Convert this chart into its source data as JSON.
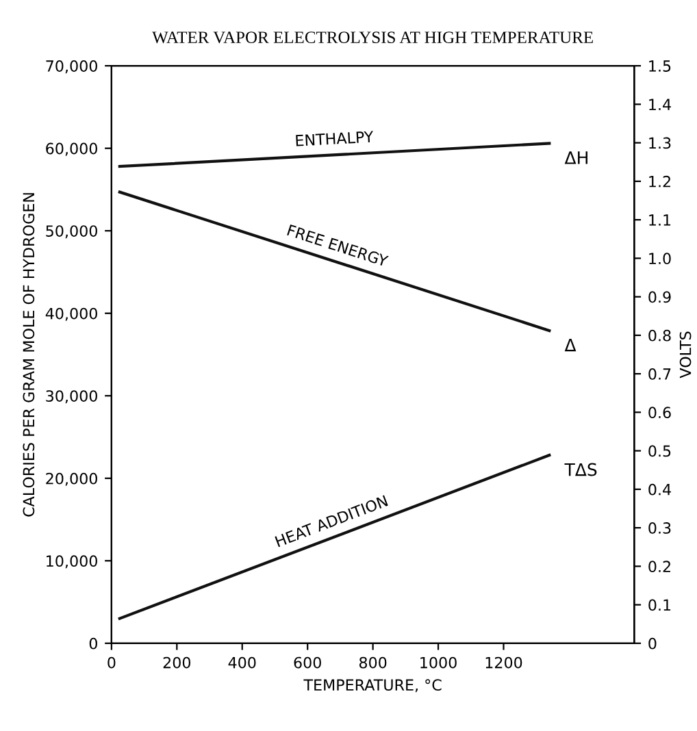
{
  "chart_data": {
    "type": "line",
    "title": "WATER VAPOR ELECTROLYSIS AT HIGH TEMPERATURE",
    "xlabel": "TEMPERATURE, °C",
    "ylabel": "CALORIES PER GRAM MOLE OF HYDROGEN",
    "y2label": "VOLTS",
    "x": [
      25,
      1340
    ],
    "series": [
      {
        "name": "ENTHALPY",
        "color": "#111111",
        "values": [
          57800,
          60600
        ]
      },
      {
        "name": "FREE ENERGY",
        "color": "#111111",
        "values": [
          54700,
          37900
        ]
      },
      {
        "name": "HEAT ADDITION",
        "color": "#111111",
        "values": [
          3000,
          22800
        ]
      }
    ],
    "annotations": [
      "ΔH",
      "Δ",
      "TΔS"
    ],
    "xlim": [
      0,
      1600
    ],
    "xticks": [
      0,
      200,
      400,
      600,
      800,
      1000,
      1200
    ],
    "ylim": [
      0,
      70000
    ],
    "yticks": [
      0,
      {
        "value": 10000,
        "label": "10,000"
      },
      {
        "value": 20000,
        "label": "20,000"
      },
      {
        "value": 30000,
        "label": "30,000"
      },
      {
        "value": 40000,
        "label": "40,000"
      },
      {
        "value": 50000,
        "label": "50,000"
      },
      {
        "value": 60000,
        "label": "60,000"
      },
      {
        "value": 70000,
        "label": "70,000"
      }
    ],
    "y2lim": [
      0,
      1.5
    ],
    "y2ticks": [
      0,
      0.1,
      0.2,
      0.3,
      0.4,
      0.5,
      0.6,
      0.7,
      0.8,
      0.9,
      {
        "value": 1,
        "label": "1.0"
      },
      1.1,
      1.2,
      1.3,
      1.4,
      1.5
    ],
    "grid": false,
    "legend": false,
    "marker": "none",
    "line_style": "solid"
  }
}
